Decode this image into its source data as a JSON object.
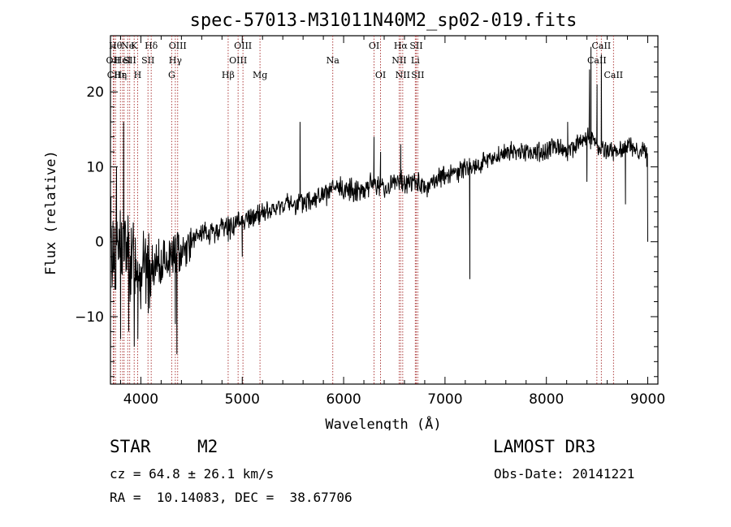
{
  "chart_data": {
    "type": "line",
    "title": "spec-57013-M31011N40M2_sp02-019.fits",
    "xlabel": "Wavelength (Å)",
    "ylabel": "Flux (relative)",
    "xlim": [
      3700,
      9100
    ],
    "ylim": [
      -19,
      27.5
    ],
    "xticks": [
      4000,
      5000,
      6000,
      7000,
      8000,
      9000
    ],
    "xtick_labels": [
      "4000",
      "5000",
      "6000",
      "7000",
      "8000",
      "9000"
    ],
    "yticks": [
      -10,
      0,
      10,
      20
    ],
    "ytick_labels": [
      "−10",
      "0",
      "10",
      "20"
    ],
    "series": [
      {
        "name": "spectrum",
        "color": "#000000",
        "x": [
          3700,
          3750,
          3800,
          3850,
          3900,
          3950,
          4000,
          4050,
          4100,
          4200,
          4300,
          4400,
          4500,
          4600,
          4700,
          4800,
          4900,
          5000,
          5100,
          5200,
          5300,
          5400,
          5500,
          5600,
          5700,
          5800,
          5900,
          6000,
          6100,
          6200,
          6300,
          6400,
          6500,
          6600,
          6700,
          6800,
          6900,
          7000,
          7100,
          7200,
          7300,
          7400,
          7500,
          7600,
          7700,
          7800,
          7900,
          8000,
          8100,
          8200,
          8300,
          8400,
          8500,
          8600,
          8700,
          8800,
          8900,
          9000
        ],
        "y": [
          -2,
          -1,
          0,
          -1,
          -3,
          -2,
          -3,
          -4,
          -4,
          -3,
          -2,
          -1,
          0,
          1,
          1,
          2,
          2,
          3,
          3,
          4,
          4,
          5,
          5,
          5,
          6,
          6,
          7,
          7,
          7,
          7,
          8,
          7,
          8,
          8,
          8,
          7,
          8,
          9,
          9,
          10,
          10,
          11,
          11,
          12,
          12,
          12,
          12,
          12,
          13,
          12,
          13,
          14,
          13,
          12,
          12,
          13,
          12,
          12
        ],
        "features": [
          {
            "x": 3705,
            "y": 6
          },
          {
            "x": 3760,
            "y": 10
          },
          {
            "x": 3800,
            "y": -13
          },
          {
            "x": 3830,
            "y": 16
          },
          {
            "x": 3880,
            "y": -12
          },
          {
            "x": 3935,
            "y": -14
          },
          {
            "x": 3970,
            "y": -13
          },
          {
            "x": 4000,
            "y": -9
          },
          {
            "x": 4340,
            "y": -11
          },
          {
            "x": 4355,
            "y": -15
          },
          {
            "x": 4862,
            "y": 0
          },
          {
            "x": 5000,
            "y": -2
          },
          {
            "x": 5570,
            "y": 16
          },
          {
            "x": 6300,
            "y": 14
          },
          {
            "x": 6365,
            "y": 12
          },
          {
            "x": 6563,
            "y": 13
          },
          {
            "x": 7245,
            "y": -5
          },
          {
            "x": 8210,
            "y": 16
          },
          {
            "x": 8400,
            "y": 8
          },
          {
            "x": 8425,
            "y": 23
          },
          {
            "x": 8440,
            "y": 26
          },
          {
            "x": 8500,
            "y": 21
          },
          {
            "x": 8542,
            "y": 25
          },
          {
            "x": 8662,
            "y": 12
          },
          {
            "x": 8780,
            "y": 5
          },
          {
            "x": 8990,
            "y": 10
          },
          {
            "x": 9000,
            "y": 0
          }
        ]
      }
    ],
    "lines": [
      {
        "x": 3750,
        "label": "Hθ",
        "row": 1
      },
      {
        "x": 3727,
        "label": "OII",
        "row": 2
      },
      {
        "x": 3734,
        "label": "CII",
        "row": 3
      },
      {
        "x": 3798,
        "label": "Hε",
        "row": 3
      },
      {
        "x": 3820,
        "label": "HeI",
        "row": 2
      },
      {
        "x": 3835,
        "label": "η",
        "row": 3
      },
      {
        "x": 3934,
        "label": "K",
        "row": 1
      },
      {
        "x": 3870,
        "label": "Ne",
        "row": 1
      },
      {
        "x": 3890,
        "label": "SII",
        "row": 2
      },
      {
        "x": 3968,
        "label": "H",
        "row": 3
      },
      {
        "x": 4102,
        "label": "Hδ",
        "row": 1
      },
      {
        "x": 4070,
        "label": "SII",
        "row": 2
      },
      {
        "x": 4304,
        "label": "G",
        "row": 3
      },
      {
        "x": 4340,
        "label": "Hγ",
        "row": 2
      },
      {
        "x": 4363,
        "label": "OIII",
        "row": 1
      },
      {
        "x": 4861,
        "label": "Hβ",
        "row": 3
      },
      {
        "x": 4959,
        "label": "OIII",
        "row": 2
      },
      {
        "x": 5007,
        "label": "OIII",
        "row": 1
      },
      {
        "x": 5175,
        "label": "Mg",
        "row": 3
      },
      {
        "x": 5893,
        "label": "Na",
        "row": 2
      },
      {
        "x": 6300,
        "label": "OI",
        "row": 1
      },
      {
        "x": 6364,
        "label": "OI",
        "row": 3
      },
      {
        "x": 6548,
        "label": "NII",
        "row": 2
      },
      {
        "x": 6563,
        "label": "Hα",
        "row": 1
      },
      {
        "x": 6583,
        "label": "NII",
        "row": 3
      },
      {
        "x": 6707,
        "label": "Li",
        "row": 2
      },
      {
        "x": 6716,
        "label": "SII",
        "row": 1
      },
      {
        "x": 6731,
        "label": "SII",
        "row": 3
      },
      {
        "x": 8498,
        "label": "CaII",
        "row": 2
      },
      {
        "x": 8542,
        "label": "CaII",
        "row": 1
      },
      {
        "x": 8662,
        "label": "CaII",
        "row": 3
      }
    ],
    "line_color": "#a52a2a"
  },
  "info": {
    "object_class": "STAR",
    "subclass": "M2",
    "survey": "LAMOST DR3",
    "redshift_text": "cz = 64.8 ± 26.1 km/s",
    "obs_date_text": "Obs-Date: 20141221",
    "coords_text": "RA =  10.14083, DEC =  38.67706"
  }
}
